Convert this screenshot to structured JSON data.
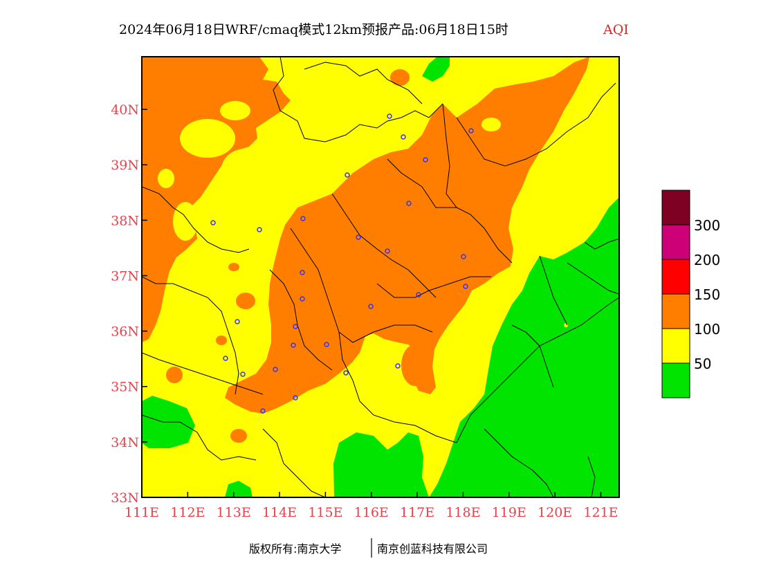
{
  "title": {
    "main": "2024年06月18日WRF/cmaq模式12km预报产品:06月18日15时",
    "variable": "AQI"
  },
  "map": {
    "lon_range": [
      111,
      121.4
    ],
    "lat_range": [
      33,
      40.95
    ],
    "lon_ticks": [
      "111E",
      "112E",
      "113E",
      "114E",
      "115E",
      "116E",
      "117E",
      "118E",
      "119E",
      "120E",
      "121E"
    ],
    "lat_ticks": [
      "33N",
      "34N",
      "35N",
      "36N",
      "37N",
      "38N",
      "39N",
      "40N"
    ],
    "colors": {
      "good": "#00e400",
      "moderate": "#ffff00",
      "usg": "#ff7e00",
      "unhealthy": "#ff0000",
      "very_unhealthy": "#cc0077",
      "hazardous": "#7e0023",
      "tick_label": "#e8414a",
      "city_marker": "#3333ff"
    },
    "legend": {
      "colors": [
        "#00e400",
        "#ffff00",
        "#ff7e00",
        "#ff0000",
        "#cc0077",
        "#7e0023"
      ],
      "labels": [
        "50",
        "100",
        "150",
        "200",
        "300"
      ]
    }
  },
  "footer": {
    "left": "版权所有:南京大学",
    "right": "南京创蓝科技有限公司"
  }
}
